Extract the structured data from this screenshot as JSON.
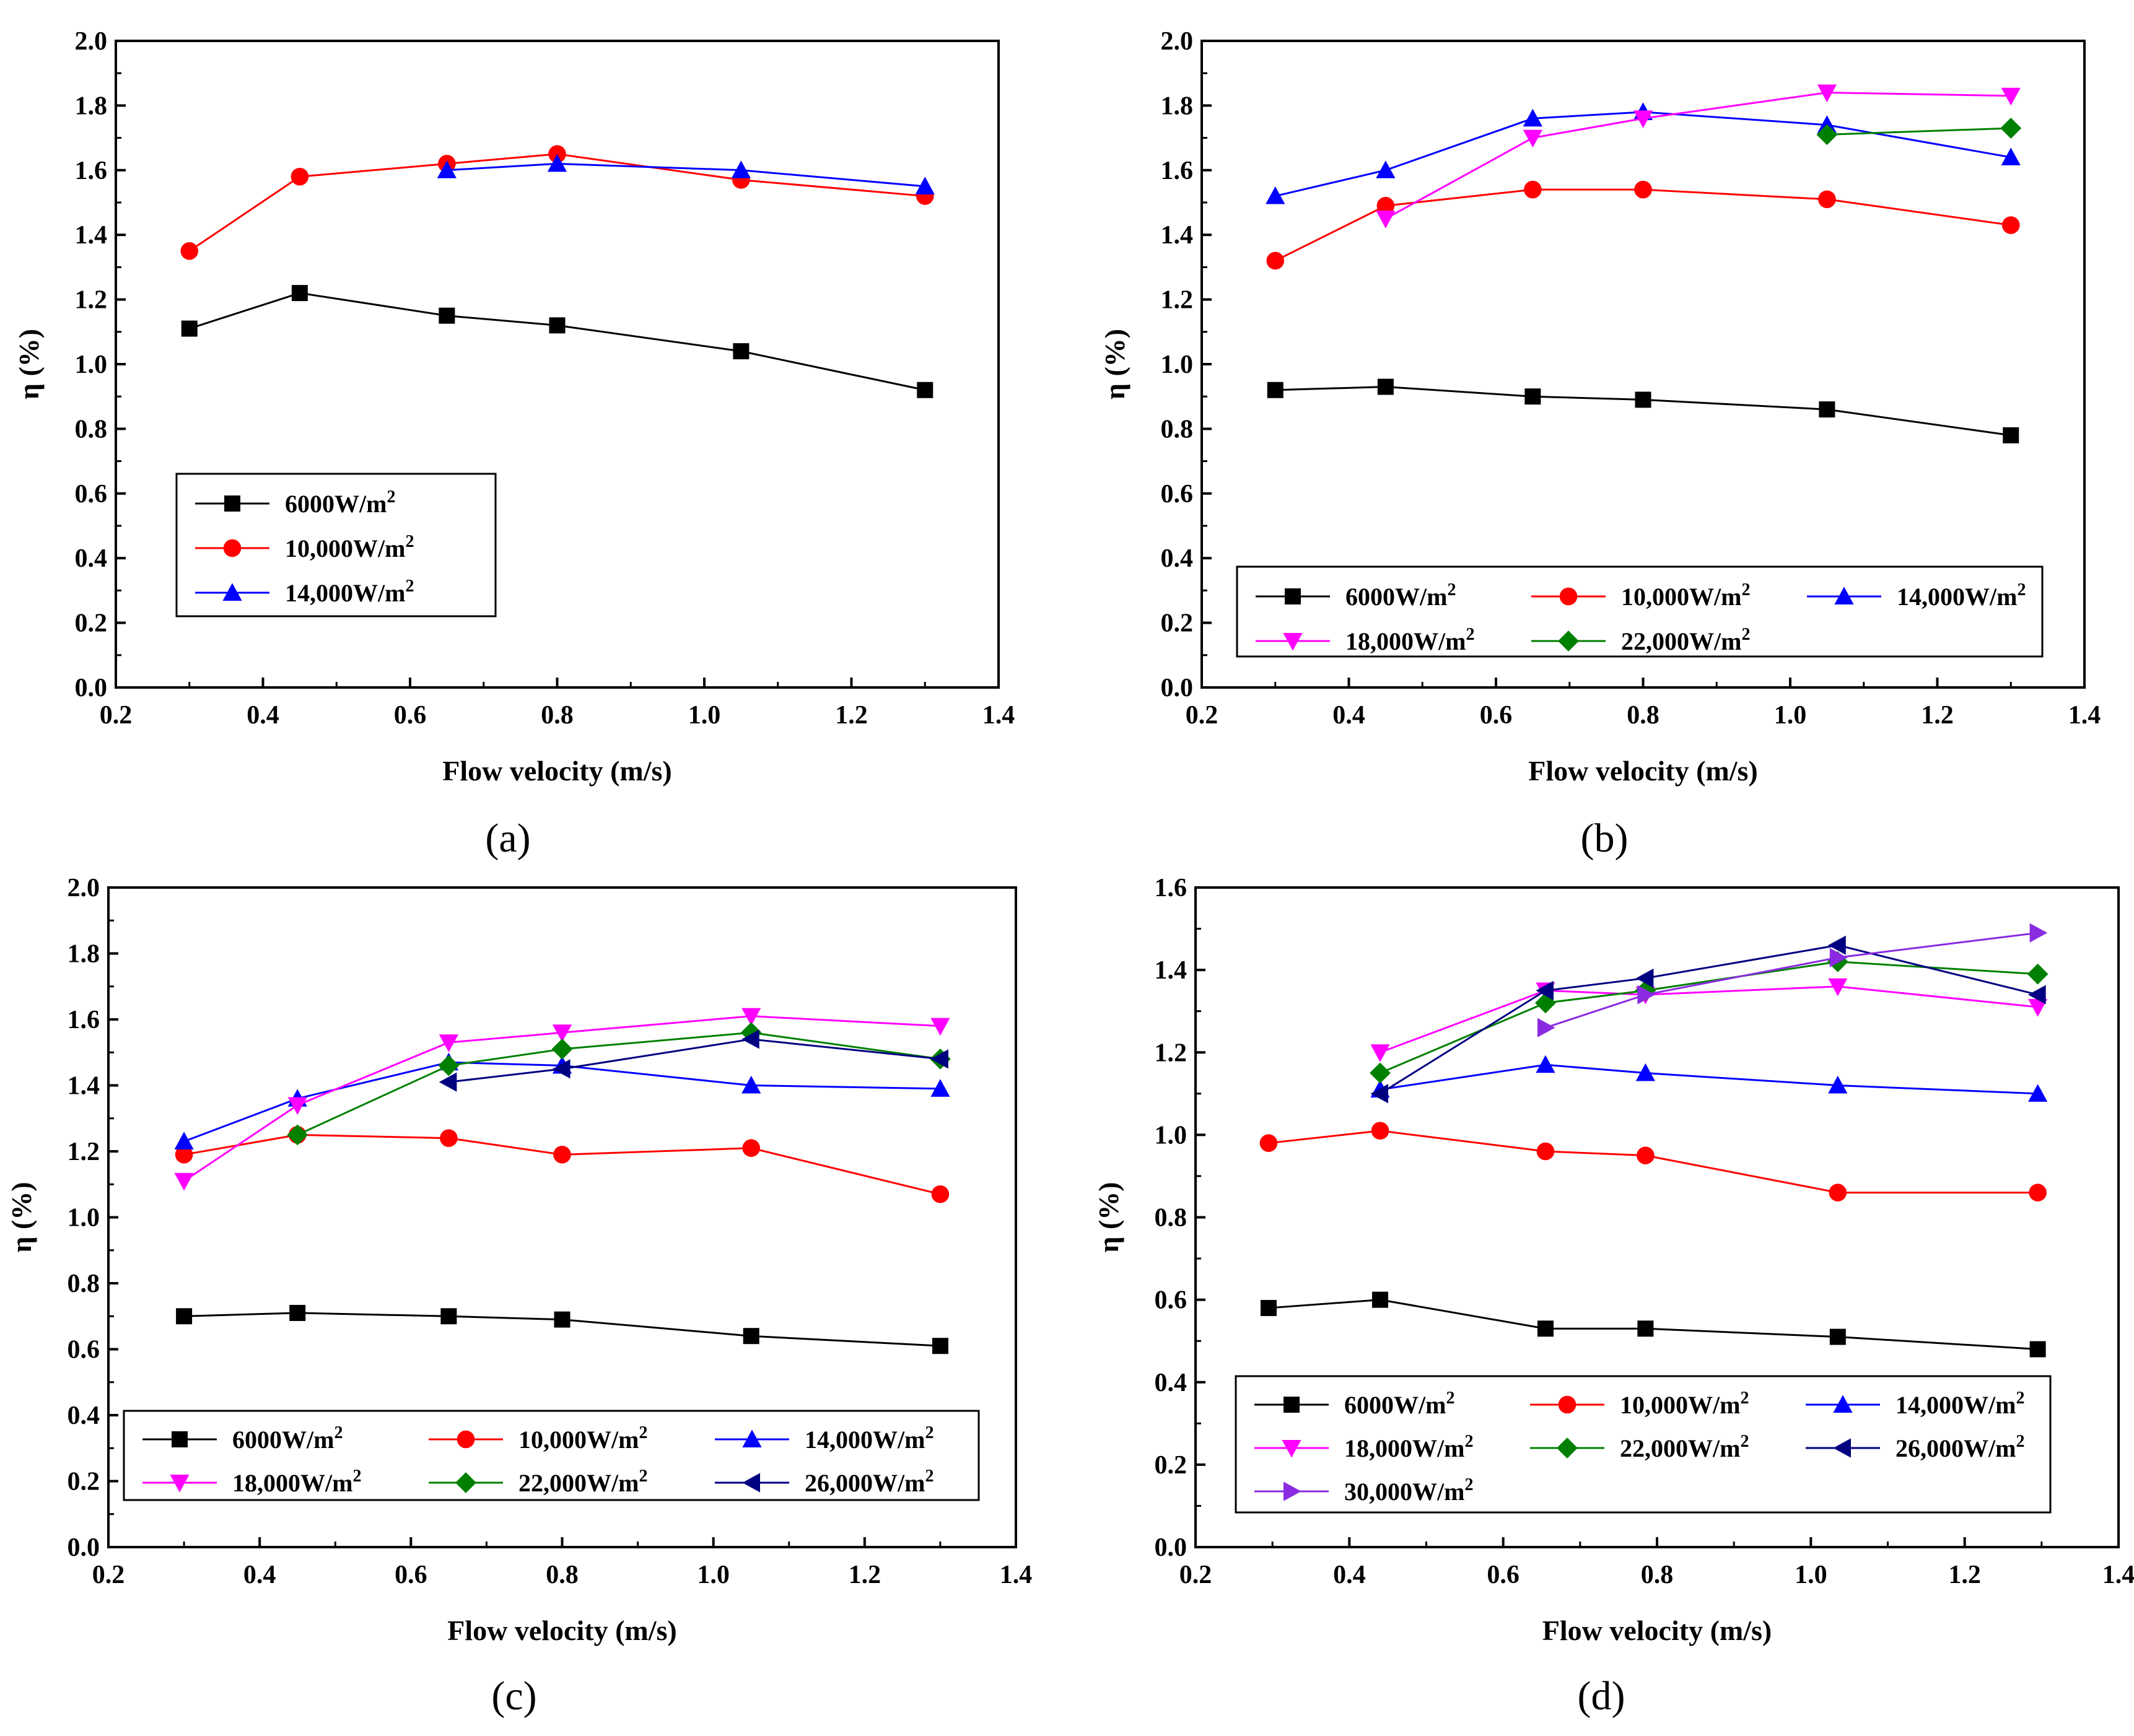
{
  "series_styles": {
    "6000W/m2": {
      "color": "#000000",
      "marker": "square"
    },
    "10,000W/m2": {
      "color": "#ff0000",
      "marker": "circle"
    },
    "14,000W/m2": {
      "color": "#0000ff",
      "marker": "triangle-up"
    },
    "18,000W/m2": {
      "color": "#ff00ff",
      "marker": "triangle-down"
    },
    "22,000W/m2": {
      "color": "#008000",
      "marker": "diamond"
    },
    "26,000W/m2": {
      "color": "#000080",
      "marker": "triangle-left"
    },
    "30,000W/m2": {
      "color": "#8a2be2",
      "marker": "triangle-right"
    }
  },
  "chart_data": [
    {
      "panel": "(a)",
      "type": "line",
      "title": "",
      "xlabel": "Flow velocity (m/s)",
      "ylabel": "η (%)",
      "xlim": [
        0.2,
        1.4
      ],
      "ylim": [
        0.0,
        2.0
      ],
      "xticks": [
        "0.2",
        "0.4",
        "0.6",
        "0.8",
        "1.0",
        "1.2",
        "1.4"
      ],
      "yticks": [
        "0.0",
        "0.2",
        "0.4",
        "0.6",
        "0.8",
        "1.0",
        "1.2",
        "1.4",
        "1.6",
        "1.8",
        "2.0"
      ],
      "legend_columns": 1,
      "series": [
        {
          "name": "6000W/m2",
          "label": "6000W/m",
          "x": [
            0.3,
            0.45,
            0.65,
            0.8,
            1.05,
            1.3
          ],
          "values": [
            1.11,
            1.22,
            1.15,
            1.12,
            1.04,
            0.92
          ]
        },
        {
          "name": "10,000W/m2",
          "label": "10,000W/m",
          "x": [
            0.3,
            0.45,
            0.65,
            0.8,
            1.05,
            1.3
          ],
          "values": [
            1.35,
            1.58,
            1.62,
            1.65,
            1.57,
            1.52
          ]
        },
        {
          "name": "14,000W/m2",
          "label": "14,000W/m",
          "x": [
            0.65,
            0.8,
            1.05,
            1.3
          ],
          "values": [
            1.6,
            1.62,
            1.6,
            1.55
          ]
        }
      ]
    },
    {
      "panel": "(b)",
      "type": "line",
      "title": "",
      "xlabel": "Flow velocity (m/s)",
      "ylabel": "η (%)",
      "xlim": [
        0.2,
        1.4
      ],
      "ylim": [
        0.0,
        2.0
      ],
      "xticks": [
        "0.2",
        "0.4",
        "0.6",
        "0.8",
        "1.0",
        "1.2",
        "1.4"
      ],
      "yticks": [
        "0.0",
        "0.2",
        "0.4",
        "0.6",
        "0.8",
        "1.0",
        "1.2",
        "1.4",
        "1.6",
        "1.8",
        "2.0"
      ],
      "legend_columns": 3,
      "series": [
        {
          "name": "6000W/m2",
          "label": "6000W/m",
          "x": [
            0.3,
            0.45,
            0.65,
            0.8,
            1.05,
            1.3
          ],
          "values": [
            0.92,
            0.93,
            0.9,
            0.89,
            0.86,
            0.78
          ]
        },
        {
          "name": "10,000W/m2",
          "label": "10,000W/m",
          "x": [
            0.3,
            0.45,
            0.65,
            0.8,
            1.05,
            1.3
          ],
          "values": [
            1.32,
            1.49,
            1.54,
            1.54,
            1.51,
            1.43
          ]
        },
        {
          "name": "14,000W/m2",
          "label": "14,000W/m",
          "x": [
            0.3,
            0.45,
            0.65,
            0.8,
            1.05,
            1.3
          ],
          "values": [
            1.52,
            1.6,
            1.76,
            1.78,
            1.74,
            1.64
          ]
        },
        {
          "name": "18,000W/m2",
          "label": "18,000W/m",
          "x": [
            0.45,
            0.65,
            0.8,
            1.05,
            1.3
          ],
          "values": [
            1.45,
            1.7,
            1.76,
            1.84,
            1.83
          ]
        },
        {
          "name": "22,000W/m2",
          "label": "22,000W/m",
          "x": [
            1.05,
            1.3
          ],
          "values": [
            1.71,
            1.73
          ]
        }
      ]
    },
    {
      "panel": "(c)",
      "type": "line",
      "title": "",
      "xlabel": "Flow velocity (m/s)",
      "ylabel": "η (%)",
      "xlim": [
        0.2,
        1.4
      ],
      "ylim": [
        0.0,
        2.0
      ],
      "xticks": [
        "0.2",
        "0.4",
        "0.6",
        "0.8",
        "1.0",
        "1.2",
        "1.4"
      ],
      "yticks": [
        "0.0",
        "0.2",
        "0.4",
        "0.6",
        "0.8",
        "1.0",
        "1.2",
        "1.4",
        "1.6",
        "1.8",
        "2.0"
      ],
      "legend_columns": 3,
      "series": [
        {
          "name": "6000W/m2",
          "label": "6000W/m",
          "x": [
            0.3,
            0.45,
            0.65,
            0.8,
            1.05,
            1.3
          ],
          "values": [
            0.7,
            0.71,
            0.7,
            0.69,
            0.64,
            0.61
          ]
        },
        {
          "name": "10,000W/m2",
          "label": "10,000W/m",
          "x": [
            0.3,
            0.45,
            0.65,
            0.8,
            1.05,
            1.3
          ],
          "values": [
            1.19,
            1.25,
            1.24,
            1.19,
            1.21,
            1.07
          ]
        },
        {
          "name": "14,000W/m2",
          "label": "14,000W/m",
          "x": [
            0.3,
            0.45,
            0.65,
            0.8,
            1.05,
            1.3
          ],
          "values": [
            1.23,
            1.36,
            1.47,
            1.46,
            1.4,
            1.39
          ]
        },
        {
          "name": "18,000W/m2",
          "label": "18,000W/m",
          "x": [
            0.3,
            0.45,
            0.65,
            0.8,
            1.05,
            1.3
          ],
          "values": [
            1.11,
            1.34,
            1.53,
            1.56,
            1.61,
            1.58
          ]
        },
        {
          "name": "22,000W/m2",
          "label": "22,000W/m",
          "x": [
            0.45,
            0.65,
            0.8,
            1.05,
            1.3
          ],
          "values": [
            1.25,
            1.46,
            1.51,
            1.56,
            1.48
          ]
        },
        {
          "name": "26,000W/m2",
          "label": "26,000W/m",
          "x": [
            0.65,
            0.8,
            1.05,
            1.3
          ],
          "values": [
            1.41,
            1.45,
            1.54,
            1.48
          ]
        }
      ]
    },
    {
      "panel": "(d)",
      "type": "line",
      "title": "",
      "xlabel": "Flow velocity (m/s)",
      "ylabel": "η (%)",
      "xlim": [
        0.2,
        1.4
      ],
      "ylim": [
        0.0,
        1.6
      ],
      "xticks": [
        "0.2",
        "0.4",
        "0.6",
        "0.8",
        "1.0",
        "1.2",
        "1.4"
      ],
      "yticks": [
        "0.0",
        "0.2",
        "0.4",
        "0.6",
        "0.8",
        "1.0",
        "1.2",
        "1.4",
        "1.6"
      ],
      "legend_columns": 3,
      "series": [
        {
          "name": "6000W/m2",
          "label": "6000W/m",
          "x": [
            0.295,
            0.44,
            0.655,
            0.785,
            1.035,
            1.295
          ],
          "values": [
            0.58,
            0.6,
            0.53,
            0.53,
            0.51,
            0.48
          ]
        },
        {
          "name": "10,000W/m2",
          "label": "10,000W/m",
          "x": [
            0.295,
            0.44,
            0.655,
            0.785,
            1.035,
            1.295
          ],
          "values": [
            0.98,
            1.01,
            0.96,
            0.95,
            0.86,
            0.86
          ]
        },
        {
          "name": "14,000W/m2",
          "label": "14,000W/m",
          "x": [
            0.44,
            0.655,
            0.785,
            1.035,
            1.295
          ],
          "values": [
            1.11,
            1.17,
            1.15,
            1.12,
            1.1
          ]
        },
        {
          "name": "18,000W/m2",
          "label": "18,000W/m",
          "x": [
            0.44,
            0.655,
            0.785,
            1.035,
            1.295
          ],
          "values": [
            1.2,
            1.35,
            1.34,
            1.36,
            1.31
          ]
        },
        {
          "name": "22,000W/m2",
          "label": "22,000W/m",
          "x": [
            0.44,
            0.655,
            0.785,
            1.035,
            1.295
          ],
          "values": [
            1.15,
            1.32,
            1.35,
            1.42,
            1.39
          ]
        },
        {
          "name": "26,000W/m2",
          "label": "26,000W/m",
          "x": [
            0.44,
            0.655,
            0.785,
            1.035,
            1.295
          ],
          "values": [
            1.1,
            1.35,
            1.38,
            1.46,
            1.34
          ]
        },
        {
          "name": "30,000W/m2",
          "label": "30,000W/m",
          "x": [
            0.655,
            0.785,
            1.035,
            1.295
          ],
          "values": [
            1.26,
            1.34,
            1.43,
            1.49
          ]
        }
      ]
    }
  ]
}
